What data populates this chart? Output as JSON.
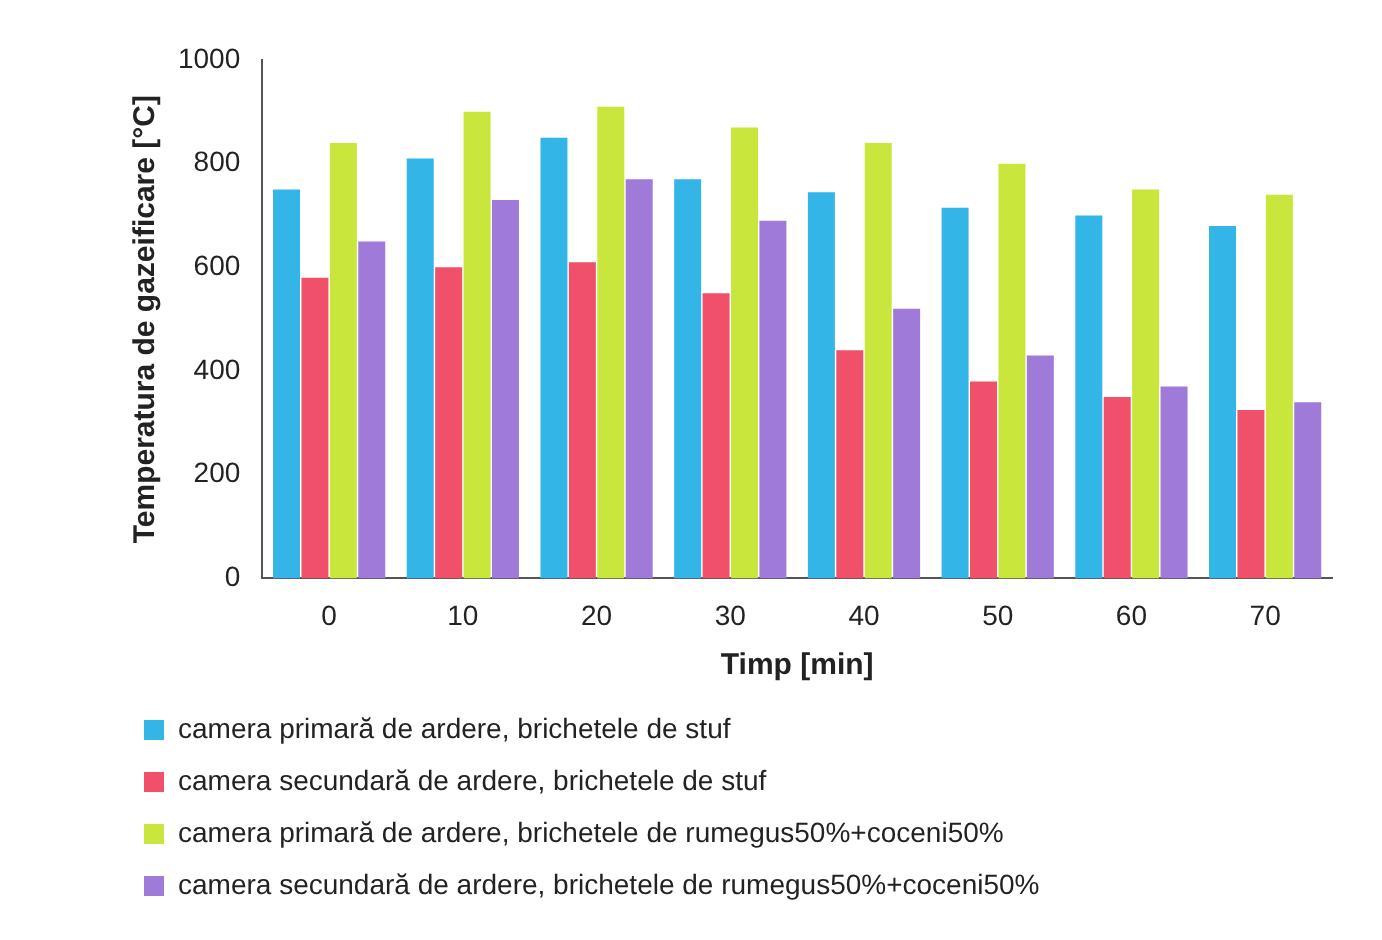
{
  "chart_data": {
    "type": "bar",
    "xlabel": "Timp [min]",
    "ylabel": "Temperatura de gazeificare [°C]",
    "categories": [
      "0",
      "10",
      "20",
      "30",
      "40",
      "50",
      "60",
      "70"
    ],
    "series": [
      {
        "name": "camera primară de ardere, brichetele de stuf",
        "color": "#33b5e8",
        "values": [
          750,
          810,
          850,
          770,
          745,
          715,
          700,
          680
        ]
      },
      {
        "name": "camera secundară de ardere, brichetele de stuf",
        "color": "#f0506a",
        "values": [
          580,
          600,
          610,
          550,
          440,
          380,
          350,
          325
        ]
      },
      {
        "name": "camera primară de ardere, brichetele de rumegus50%+coceni50%",
        "color": "#c8e63c",
        "values": [
          840,
          900,
          910,
          870,
          840,
          800,
          750,
          740
        ]
      },
      {
        "name": "camera secundară de ardere, brichetele de rumegus50%+coceni50%",
        "color": "#a07ad8",
        "values": [
          650,
          730,
          770,
          690,
          520,
          430,
          370,
          340
        ]
      }
    ],
    "ylim": [
      0,
      1000
    ],
    "yticks": [
      0,
      200,
      400,
      600,
      800,
      1000
    ],
    "grid": false,
    "legend": "bottom"
  }
}
